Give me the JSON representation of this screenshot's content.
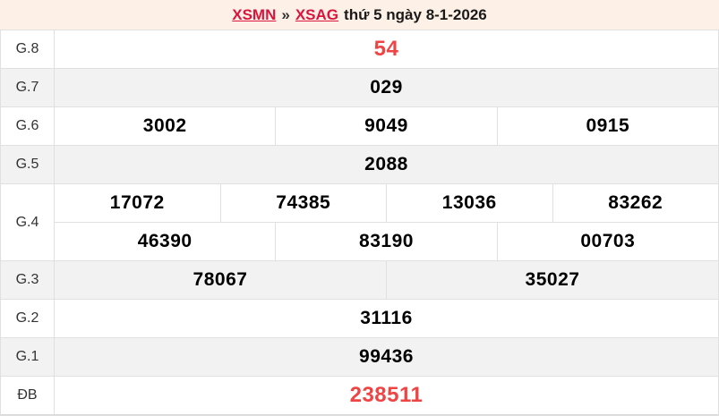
{
  "header": {
    "link_xsmn": "XSMN",
    "separator": "»",
    "link_xsag": "XSAG",
    "date_text": "thứ 5 ngày 8-1-2026"
  },
  "colors": {
    "page_background": "#fdf0e6",
    "highlight_red": "#ef4444",
    "link_red": "#dc143c",
    "row_alt_background": "#f2f2f2",
    "border": "#e0e0e0"
  },
  "table": {
    "rows": [
      {
        "label": "G.8",
        "highlight": true,
        "lines": [
          [
            "54"
          ]
        ]
      },
      {
        "label": "G.7",
        "highlight": false,
        "lines": [
          [
            "029"
          ]
        ]
      },
      {
        "label": "G.6",
        "highlight": false,
        "lines": [
          [
            "3002",
            "9049",
            "0915"
          ]
        ]
      },
      {
        "label": "G.5",
        "highlight": false,
        "lines": [
          [
            "2088"
          ]
        ]
      },
      {
        "label": "G.4",
        "highlight": false,
        "lines": [
          [
            "17072",
            "74385",
            "13036",
            "83262"
          ],
          [
            "46390",
            "83190",
            "00703"
          ]
        ]
      },
      {
        "label": "G.3",
        "highlight": false,
        "lines": [
          [
            "78067",
            "35027"
          ]
        ]
      },
      {
        "label": "G.2",
        "highlight": false,
        "lines": [
          [
            "31116"
          ]
        ]
      },
      {
        "label": "G.1",
        "highlight": false,
        "lines": [
          [
            "99436"
          ]
        ]
      },
      {
        "label": "ĐB",
        "highlight": true,
        "lines": [
          [
            "238511"
          ]
        ]
      }
    ]
  }
}
